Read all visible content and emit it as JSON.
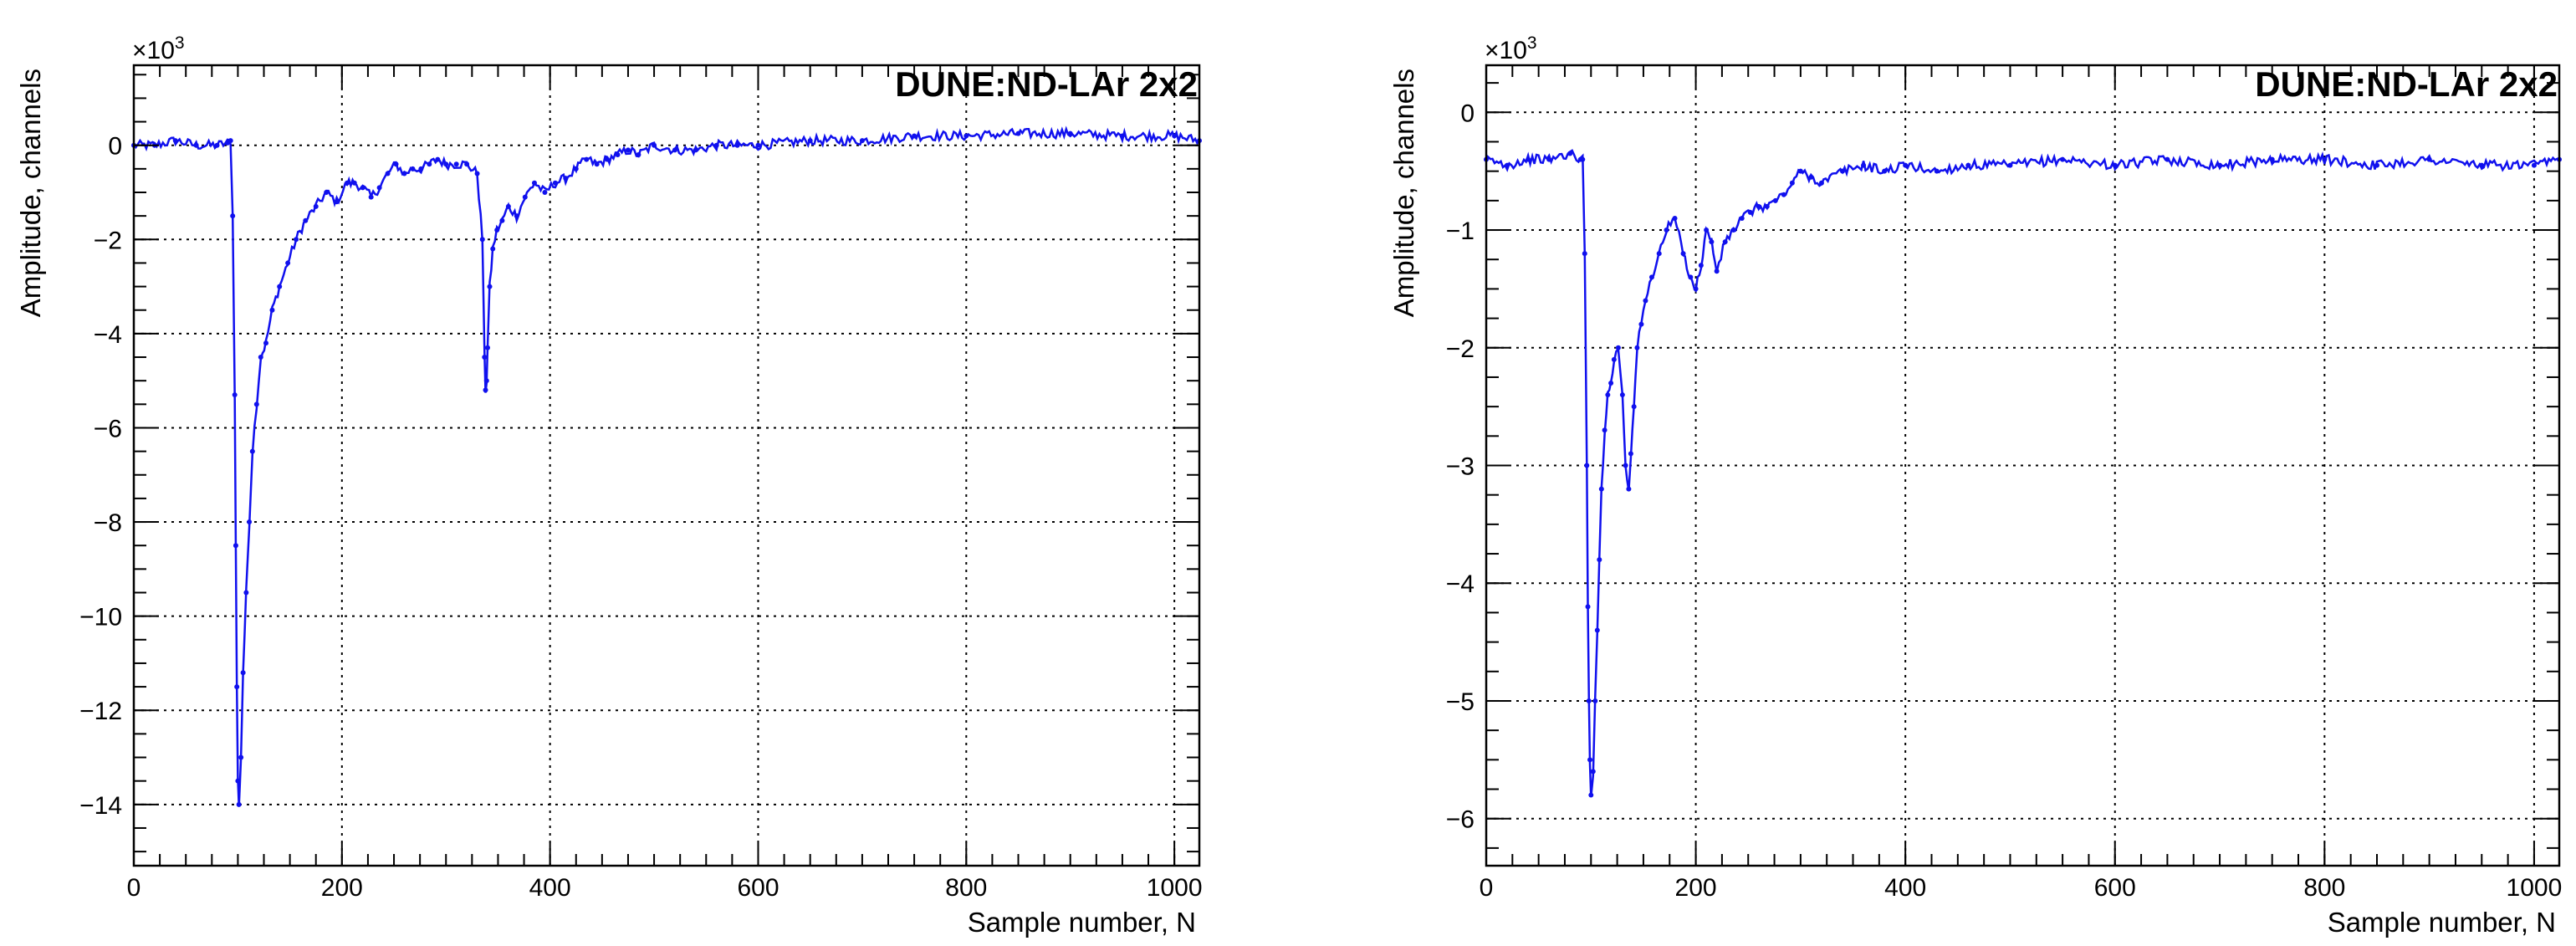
{
  "chart_data": [
    {
      "type": "line",
      "title": "DUNE:ND-LAr 2x2",
      "xlabel": "Sample number, N",
      "ylabel": "Amplitude, channels",
      "y_multiplier_base": "×10",
      "y_multiplier_exp": "3",
      "xlim": [
        0,
        1024
      ],
      "ylim": [
        -15.3,
        1.7
      ],
      "xticks": [
        0,
        200,
        400,
        600,
        800,
        1000
      ],
      "xtick_labels": [
        "0",
        "200",
        "400",
        "600",
        "800",
        "1000"
      ],
      "yticks": [
        -14,
        -12,
        -10,
        -8,
        -6,
        -4,
        -2,
        0
      ],
      "ytick_labels": [
        "−14",
        "−12",
        "−10",
        "−8",
        "−6",
        "−4",
        "−2",
        "0"
      ],
      "grid": true,
      "color": "#1010ee",
      "series": [
        {
          "x": [
            0,
            20,
            40,
            60,
            80,
            90,
            93,
            95,
            97,
            98,
            99,
            100,
            101,
            103,
            105,
            108,
            111,
            114,
            118,
            122,
            127,
            133,
            140,
            148,
            156,
            165,
            175,
            185,
            195,
            205,
            212,
            220,
            228,
            236,
            244,
            252,
            260,
            268,
            276,
            284,
            292,
            300,
            310,
            320,
            330,
            335,
            337,
            338,
            339,
            340,
            342,
            345,
            349,
            354,
            360,
            368,
            376,
            385,
            395,
            405,
            415,
            425,
            435,
            445,
            455,
            465,
            475,
            485,
            500,
            520,
            540,
            560,
            580,
            600,
            650,
            700,
            750,
            800,
            850,
            900,
            950,
            1000,
            1024
          ],
          "y": [
            0.0,
            0.0,
            0.1,
            0.0,
            0.0,
            0.05,
            0.1,
            -1.5,
            -5.3,
            -8.5,
            -11.5,
            -13.5,
            -14.0,
            -13.0,
            -11.2,
            -9.5,
            -8.0,
            -6.5,
            -5.5,
            -4.5,
            -4.2,
            -3.5,
            -3.0,
            -2.5,
            -2.0,
            -1.6,
            -1.3,
            -1.0,
            -1.2,
            -0.8,
            -0.8,
            -0.9,
            -1.1,
            -0.9,
            -0.6,
            -0.4,
            -0.6,
            -0.5,
            -0.5,
            -0.4,
            -0.3,
            -0.4,
            -0.4,
            -0.4,
            -0.6,
            -2.0,
            -4.5,
            -5.2,
            -5.0,
            -4.3,
            -3.0,
            -2.2,
            -1.8,
            -1.6,
            -1.3,
            -1.5,
            -1.1,
            -0.8,
            -1.0,
            -0.8,
            -0.7,
            -0.5,
            -0.3,
            -0.4,
            -0.3,
            -0.2,
            -0.1,
            -0.2,
            0.0,
            -0.1,
            -0.1,
            0.0,
            0.0,
            0.0,
            0.1,
            0.1,
            0.2,
            0.2,
            0.25,
            0.25,
            0.2,
            0.2,
            0.1
          ]
        }
      ]
    },
    {
      "type": "line",
      "title": "DUNE:ND-LAr 2x2",
      "xlabel": "Sample number, N",
      "ylabel": "Amplitude, channels",
      "y_multiplier_base": "×10",
      "y_multiplier_exp": "3",
      "xlim": [
        0,
        1024
      ],
      "ylim": [
        -6.4,
        0.4
      ],
      "xticks": [
        0,
        200,
        400,
        600,
        800,
        1000
      ],
      "xtick_labels": [
        "0",
        "200",
        "400",
        "600",
        "800",
        "1000"
      ],
      "yticks": [
        -6,
        -5,
        -4,
        -3,
        -2,
        -1,
        0
      ],
      "ytick_labels": [
        "−6",
        "−5",
        "−4",
        "−3",
        "−2",
        "−1",
        "0"
      ],
      "grid": true,
      "color": "#1010ee",
      "series": [
        {
          "x": [
            0,
            20,
            40,
            60,
            80,
            90,
            92,
            94,
            96,
            97,
            98,
            99,
            100,
            102,
            104,
            106,
            108,
            110,
            113,
            116,
            119,
            122,
            126,
            130,
            133,
            136,
            138,
            141,
            144,
            148,
            152,
            158,
            165,
            172,
            180,
            188,
            195,
            200,
            205,
            210,
            215,
            220,
            228,
            236,
            244,
            252,
            260,
            268,
            276,
            284,
            292,
            300,
            310,
            320,
            340,
            360,
            380,
            400,
            430,
            460,
            500,
            550,
            600,
            650,
            700,
            750,
            800,
            850,
            900,
            950,
            1000,
            1024
          ],
          "y": [
            -0.4,
            -0.45,
            -0.4,
            -0.4,
            -0.35,
            -0.4,
            -0.4,
            -1.2,
            -3.0,
            -4.2,
            -5.0,
            -5.5,
            -5.8,
            -5.6,
            -5.0,
            -4.4,
            -3.8,
            -3.2,
            -2.7,
            -2.4,
            -2.3,
            -2.1,
            -2.0,
            -2.4,
            -3.0,
            -3.2,
            -2.9,
            -2.5,
            -2.0,
            -1.8,
            -1.6,
            -1.4,
            -1.2,
            -1.0,
            -0.9,
            -1.2,
            -1.4,
            -1.5,
            -1.3,
            -1.0,
            -1.1,
            -1.35,
            -1.1,
            -1.0,
            -0.9,
            -0.85,
            -0.8,
            -0.8,
            -0.75,
            -0.7,
            -0.6,
            -0.5,
            -0.55,
            -0.6,
            -0.5,
            -0.45,
            -0.5,
            -0.45,
            -0.5,
            -0.45,
            -0.45,
            -0.4,
            -0.45,
            -0.4,
            -0.45,
            -0.4,
            -0.4,
            -0.45,
            -0.4,
            -0.45,
            -0.45,
            -0.4
          ]
        }
      ]
    }
  ]
}
